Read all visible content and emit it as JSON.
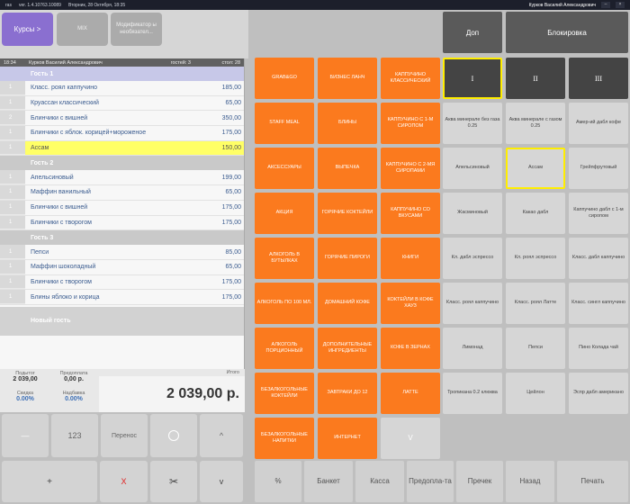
{
  "sysbar": {
    "app": "ras",
    "version": "ver. 1.4.10763.10089",
    "datetime": "Вторник, 28 Октября, 18:35",
    "user": "Курков Василий Александрович"
  },
  "header": {
    "courses": "Курсы",
    "courses_arrow": ">",
    "mix": "MIX",
    "modifier": "Модификатор ы необязател..."
  },
  "order_info": {
    "time": "18:34",
    "waiter": "Курков Василий Александрович",
    "guests": "гостей: 3",
    "table": "стол: 28"
  },
  "guests": [
    {
      "title": "Гость 1",
      "items": [
        {
          "qty": "1",
          "name": "Класс. роял каппучино",
          "price": "185,00"
        },
        {
          "qty": "1",
          "name": "Круассан классический",
          "price": "65,00"
        },
        {
          "qty": "2",
          "name": "Блинчики с вишней",
          "price": "350,00"
        },
        {
          "qty": "1",
          "name": "Блинчики с яблок. корицей+мороженое",
          "price": "175,00"
        },
        {
          "qty": "1",
          "name": "Ассам",
          "price": "150,00"
        }
      ]
    },
    {
      "title": "Гость 2",
      "items": [
        {
          "qty": "1",
          "name": "Апельсиновый",
          "price": "199,00"
        },
        {
          "qty": "1",
          "name": "Маффин ванильный",
          "price": "65,00"
        },
        {
          "qty": "1",
          "name": "Блинчики с вишней",
          "price": "175,00"
        },
        {
          "qty": "1",
          "name": "Блинчики с творогом",
          "price": "175,00"
        }
      ]
    },
    {
      "title": "Гость 3",
      "items": [
        {
          "qty": "1",
          "name": "Пепси",
          "price": "85,00"
        },
        {
          "qty": "1",
          "name": "Маффин шоколадный",
          "price": "65,00"
        },
        {
          "qty": "1",
          "name": "Блинчики с творогом",
          "price": "175,00"
        },
        {
          "qty": "1",
          "name": "Блины яблоко и корица",
          "price": "175,00"
        }
      ]
    }
  ],
  "new_guest": "Новый гость",
  "totals": {
    "subtotal_label": "Подытог",
    "subtotal": "2 039,00",
    "prepay_label": "Предоплата",
    "prepay": "0,00 р.",
    "discount_label": "Скидка",
    "discount": "0.00%",
    "markup_label": "Надбавка",
    "markup": "0.00%",
    "total_label": "Итого",
    "total": "2 039,00 р."
  },
  "keypad": {
    "minus": "—",
    "num": "123",
    "transfer": "Перенос",
    "up": "^",
    "plus": "+",
    "cancel": "X",
    "split": "✂",
    "down": "v"
  },
  "categories": [
    "GRAB&GO",
    "БИЗНЕС ЛАНЧ",
    "КАППУЧИНО КЛАССИЧЕСКИЙ",
    "STAFF MEAL",
    "БЛИНЫ",
    "КАППУЧИНО С 1-М СИРОПОМ",
    "АКСЕССУАРЫ",
    "ВЫПЕЧКА",
    "КАППУЧИНО С 2-МЯ СИРОПАМИ",
    "АКЦИЯ",
    "ГОРЯЧИЕ КОКТЕЙЛИ",
    "КАППУЧИНО СО ВКУСАМИ",
    "АЛКОГОЛЬ В БУТЫЛКАХ",
    "ГОРЯЧИЕ ПИРОГИ",
    "КНИГИ",
    "АЛКОГОЛЬ по 100 мл.",
    "ДОМАШНИЙ КОФЕ",
    "КОКТЕЙЛИ В КОФЕ ХАУЗ",
    "АЛКОГОЛЬ ПОРЦИОННЫЙ",
    "ДОПОЛНИТЕЛЬНЫЕ ИНГРЕДИЕНТЫ",
    "КОФЕ В ЗЕРНАХ",
    "БЕЗАЛКОГОЛЬНЫЕ КОКТЕЙЛИ",
    "ЗАВТРАКИ ДО 12",
    "ЛАТТЕ",
    "БЕЗАЛКОГОЛЬНЫЕ НАПИТКИ",
    "ИНТЕРНЕТ"
  ],
  "cat_down": "V",
  "right_top": {
    "extra": "Доп",
    "block": "Блокировка"
  },
  "romans": [
    "I",
    "II",
    "III"
  ],
  "products": [
    "Аква минерале без газа 0.25",
    "Аква минерале с газом 0.25",
    "Амер-ий дабл кофе",
    "Апельсиновый",
    "Ассам",
    "Грейпфрутовый",
    "Жасминовый",
    "Какао дабл",
    "Каппучино дабл с 1-м сиропом",
    "Кл. дабл эспрессо",
    "Кл. роял эспрессо",
    "Класс. дабл каппучино",
    "Класс. роял каппучино",
    "Класс. роял Латте",
    "Класс. сингл каппучино",
    "Лимонад",
    "Пепси",
    "Пино Колада чай",
    "Тропикана 0.2 клюква",
    "Цейлон",
    "Эспр дабл американо"
  ],
  "actions": {
    "percent": "%",
    "banquet": "Банкет",
    "cash": "Касса",
    "prepay": "Предопла-та",
    "precheck": "Пречек",
    "back": "Назад",
    "print": "Печать"
  }
}
